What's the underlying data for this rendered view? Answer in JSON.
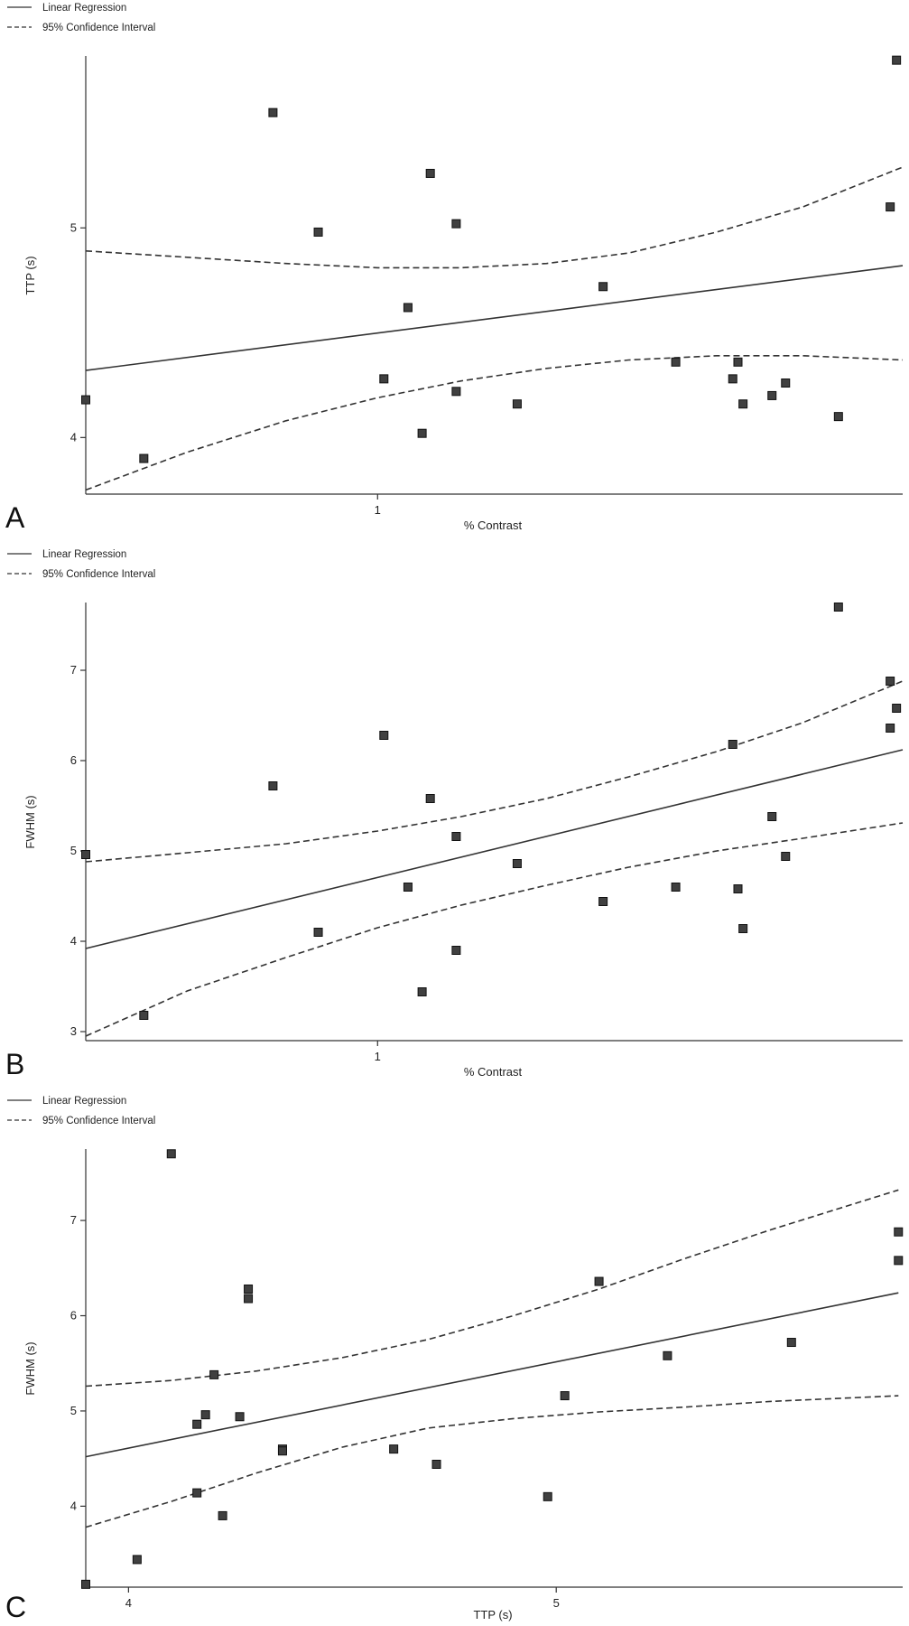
{
  "chart_data": [
    {
      "type": "scatter",
      "panel_label": "A",
      "legend": {
        "placement": "top-left",
        "regression_label": "Linear Regression",
        "ci_label": "95% Confidence Interval"
      },
      "xlabel": "% Contrast",
      "ylabel": "TTP (s)",
      "x_scale": "log",
      "xlim": [
        0.4,
        5.2
      ],
      "ylim": [
        3.73,
        5.82
      ],
      "xticks": [
        {
          "value": 1,
          "label": "1"
        }
      ],
      "yticks": [
        {
          "value": 4,
          "label": "4"
        },
        {
          "value": 5,
          "label": "5"
        }
      ],
      "grid": false,
      "series": [
        {
          "type": "scatter",
          "x": [
            0.4,
            0.48,
            0.72,
            0.83,
            1.02,
            1.1,
            1.15,
            1.18,
            1.28,
            1.28,
            1.55,
            2.03,
            2.55,
            3.05,
            3.1,
            3.15,
            3.45,
            3.6,
            4.25,
            5.0,
            5.1
          ],
          "y": [
            4.18,
            3.9,
            5.55,
            4.98,
            4.28,
            4.62,
            4.02,
            5.26,
            5.02,
            4.22,
            4.16,
            4.72,
            4.36,
            4.28,
            4.36,
            4.16,
            4.2,
            4.26,
            4.1,
            5.1,
            5.8
          ]
        },
        {
          "type": "regression",
          "x": [
            0.4,
            5.2
          ],
          "y": [
            4.32,
            4.82
          ]
        },
        {
          "type": "ci_upper",
          "x": [
            0.4,
            0.55,
            0.75,
            1.0,
            1.3,
            1.7,
            2.2,
            2.9,
            3.8,
            5.2
          ],
          "y": [
            4.89,
            4.86,
            4.83,
            4.81,
            4.81,
            4.83,
            4.88,
            4.98,
            5.1,
            5.29
          ]
        },
        {
          "type": "ci_lower",
          "x": [
            0.4,
            0.55,
            0.75,
            1.0,
            1.3,
            1.7,
            2.2,
            2.9,
            3.8,
            5.2
          ],
          "y": [
            3.75,
            3.93,
            4.08,
            4.19,
            4.27,
            4.33,
            4.37,
            4.39,
            4.39,
            4.37
          ]
        }
      ]
    },
    {
      "type": "scatter",
      "panel_label": "B",
      "legend": {
        "placement": "top-left",
        "regression_label": "Linear Regression",
        "ci_label": "95% Confidence Interval"
      },
      "xlabel": "% Contrast",
      "ylabel": "FWHM (s)",
      "x_scale": "log",
      "xlim": [
        0.4,
        5.2
      ],
      "ylim": [
        2.9,
        7.75
      ],
      "xticks": [
        {
          "value": 1,
          "label": "1"
        }
      ],
      "yticks": [
        {
          "value": 3,
          "label": "3"
        },
        {
          "value": 4,
          "label": "4"
        },
        {
          "value": 5,
          "label": "5"
        },
        {
          "value": 6,
          "label": "6"
        },
        {
          "value": 7,
          "label": "7"
        }
      ],
      "grid": false,
      "series": [
        {
          "type": "scatter",
          "x": [
            0.4,
            0.48,
            0.72,
            0.83,
            1.02,
            1.1,
            1.15,
            1.18,
            1.28,
            1.28,
            1.55,
            2.03,
            2.55,
            3.05,
            3.1,
            3.15,
            3.45,
            3.6,
            4.25,
            5.0,
            5.0,
            5.1
          ],
          "y": [
            4.96,
            3.18,
            5.72,
            4.1,
            6.28,
            4.6,
            3.44,
            5.58,
            5.16,
            3.9,
            4.86,
            4.44,
            4.6,
            6.18,
            4.58,
            4.14,
            5.38,
            4.94,
            7.7,
            6.36,
            6.88,
            6.58
          ]
        },
        {
          "type": "regression",
          "x": [
            0.4,
            5.2
          ],
          "y": [
            3.92,
            6.12
          ]
        },
        {
          "type": "ci_upper",
          "x": [
            0.4,
            0.55,
            0.75,
            1.0,
            1.3,
            1.7,
            2.2,
            2.9,
            3.8,
            5.2
          ],
          "y": [
            4.88,
            4.98,
            5.08,
            5.22,
            5.38,
            5.58,
            5.82,
            6.1,
            6.42,
            6.88
          ]
        },
        {
          "type": "ci_lower",
          "x": [
            0.4,
            0.55,
            0.75,
            1.0,
            1.3,
            1.7,
            2.2,
            2.9,
            3.8,
            5.2
          ],
          "y": [
            2.95,
            3.45,
            3.82,
            4.15,
            4.4,
            4.62,
            4.82,
            5.0,
            5.14,
            5.31
          ]
        }
      ]
    },
    {
      "type": "scatter",
      "panel_label": "C",
      "legend": {
        "placement": "top-left",
        "regression_label": "Linear Regression",
        "ci_label": "95% Confidence Interval"
      },
      "xlabel": "TTP (s)",
      "ylabel": "FWHM (s)",
      "x_scale": "linear",
      "xlim": [
        3.9,
        5.81
      ],
      "ylim": [
        3.15,
        7.75
      ],
      "xticks": [
        {
          "value": 4,
          "label": "4"
        },
        {
          "value": 5,
          "label": "5"
        }
      ],
      "yticks": [
        {
          "value": 4,
          "label": "4"
        },
        {
          "value": 5,
          "label": "5"
        },
        {
          "value": 6,
          "label": "6"
        },
        {
          "value": 7,
          "label": "7"
        }
      ],
      "grid": false,
      "series": [
        {
          "type": "scatter",
          "x": [
            3.9,
            4.02,
            4.1,
            4.16,
            4.16,
            4.18,
            4.2,
            4.22,
            4.26,
            4.28,
            4.28,
            4.36,
            4.36,
            4.62,
            4.72,
            4.98,
            5.02,
            5.1,
            5.26,
            5.55,
            5.8,
            5.8
          ],
          "y": [
            3.18,
            3.44,
            7.7,
            4.86,
            4.14,
            4.96,
            5.38,
            3.9,
            4.94,
            6.28,
            6.18,
            4.6,
            4.58,
            4.6,
            4.44,
            4.1,
            5.16,
            6.36,
            5.58,
            5.72,
            6.88,
            6.58
          ]
        },
        {
          "type": "regression",
          "x": [
            3.9,
            5.8
          ],
          "y": [
            4.52,
            6.24
          ]
        },
        {
          "type": "ci_upper",
          "x": [
            3.9,
            4.1,
            4.3,
            4.5,
            4.7,
            4.9,
            5.1,
            5.3,
            5.5,
            5.8
          ],
          "y": [
            5.26,
            5.32,
            5.42,
            5.56,
            5.75,
            6.0,
            6.28,
            6.6,
            6.9,
            7.32
          ]
        },
        {
          "type": "ci_lower",
          "x": [
            3.9,
            4.1,
            4.3,
            4.5,
            4.7,
            4.9,
            5.1,
            5.3,
            5.5,
            5.8
          ],
          "y": [
            3.78,
            4.05,
            4.35,
            4.62,
            4.82,
            4.92,
            4.99,
            5.04,
            5.1,
            5.16
          ]
        }
      ]
    }
  ]
}
